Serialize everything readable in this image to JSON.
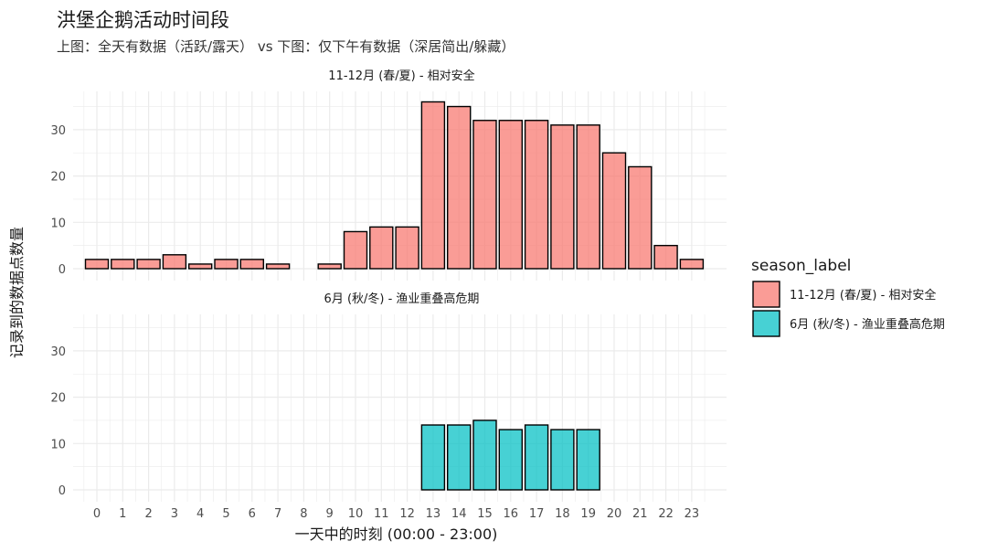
{
  "title": "洪堡企鹅活动时间段",
  "subtitle": "上图：全天有数据（活跃/露天） vs 下图：仅下午有数据（深居简出/躲藏）",
  "colors": {
    "series1": "#F8766D",
    "series2": "#00BFC4",
    "grid": "#ebebeb",
    "outline": "#000000"
  },
  "chart_data": {
    "type": "bar",
    "title": "洪堡企鹅活动时间段",
    "subtitle": "上图：全天有数据（活跃/露天） vs 下图：仅下午有数据（深居简出/躲藏）",
    "xlabel": "一天中的时刻 (00:00 - 23:00)",
    "ylabel": "记录到的数据点数量",
    "categories": [
      "0",
      "1",
      "2",
      "3",
      "4",
      "5",
      "6",
      "7",
      "8",
      "9",
      "10",
      "11",
      "12",
      "13",
      "14",
      "15",
      "16",
      "17",
      "18",
      "19",
      "20",
      "21",
      "22",
      "23"
    ],
    "ylim": [
      0,
      37
    ],
    "yticks": [
      0,
      10,
      20,
      30
    ],
    "grid": true,
    "legend": {
      "title": "season_label",
      "position": "right"
    },
    "series": [
      {
        "name": "11-12月 (春/夏) - 相对安全",
        "values": [
          2,
          2,
          2,
          3,
          1,
          2,
          2,
          1,
          null,
          1,
          8,
          9,
          9,
          36,
          35,
          32,
          32,
          32,
          31,
          31,
          25,
          22,
          5,
          2
        ]
      },
      {
        "name": "6月 (秋/冬) - 渔业重叠高危期",
        "values": [
          null,
          null,
          null,
          null,
          null,
          null,
          null,
          null,
          null,
          null,
          null,
          null,
          null,
          14,
          14,
          15,
          13,
          14,
          13,
          13,
          null,
          null,
          null,
          null
        ]
      }
    ]
  }
}
